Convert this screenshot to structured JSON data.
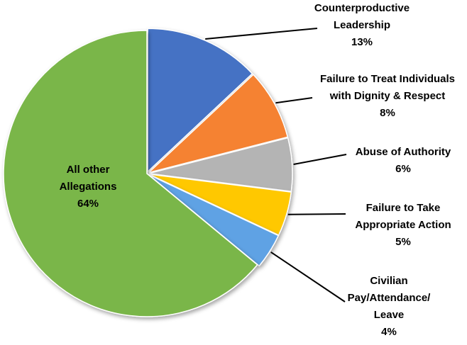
{
  "chart_data": {
    "type": "pie",
    "title": "",
    "slices": [
      {
        "label_lines": [
          "Counterproductive",
          "Leadership"
        ],
        "value": 13,
        "value_label": "13%",
        "color": "#4472C4"
      },
      {
        "label_lines": [
          "Failure to Treat Individuals",
          "with Dignity & Respect"
        ],
        "value": 8,
        "value_label": "8%",
        "color": "#F58231"
      },
      {
        "label_lines": [
          "Abuse of Authority"
        ],
        "value": 6,
        "value_label": "6%",
        "color": "#B4B4B4"
      },
      {
        "label_lines": [
          "Failure to Take",
          "Appropriate Action"
        ],
        "value": 5,
        "value_label": "5%",
        "color": "#FFC800"
      },
      {
        "label_lines": [
          "Civilian",
          "Pay/Attendance/",
          "Leave"
        ],
        "value": 4,
        "value_label": "4%",
        "color": "#5FA2E4"
      },
      {
        "label_lines": [
          "All other",
          "Allegations"
        ],
        "value": 64,
        "value_label": "64%",
        "color": "#7AB648"
      }
    ],
    "legend": "none",
    "labels": "outside-with-leader-lines"
  }
}
